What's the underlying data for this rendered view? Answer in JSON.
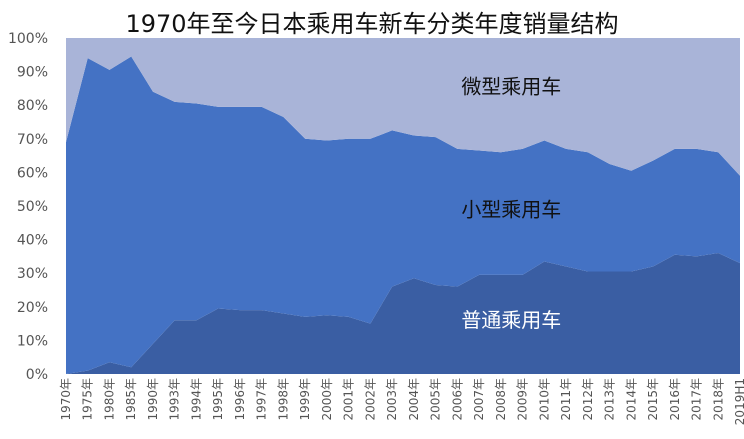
{
  "chart_data": {
    "type": "area",
    "stacked": true,
    "title": "1970年至今日本乘用车新车分类年度销量结构",
    "xlabel": "",
    "ylabel": "",
    "ylim": [
      0,
      100
    ],
    "ytick_labels": [
      "0%",
      "10%",
      "20%",
      "30%",
      "40%",
      "50%",
      "60%",
      "70%",
      "80%",
      "90%",
      "100%"
    ],
    "x": [
      "1970年",
      "1975年",
      "1980年",
      "1985年",
      "1990年",
      "1993年",
      "1994年",
      "1995年",
      "1996年",
      "1997年",
      "1998年",
      "1999年",
      "2000年",
      "2001年",
      "2002年",
      "2003年",
      "2004年",
      "2005年",
      "2006年",
      "2007年",
      "2008年",
      "2009年",
      "2010年",
      "2011年",
      "2012年",
      "2013年",
      "2014年",
      "2015年",
      "2016年",
      "2017年",
      "2018年",
      "2019H1"
    ],
    "legend": "labels-inside",
    "series": [
      {
        "name": "普通乘用车",
        "color": "#3a5ea3",
        "values": [
          0,
          1,
          3.5,
          2,
          9,
          16,
          16,
          19.5,
          19,
          19,
          18,
          17,
          17.5,
          17,
          15,
          26,
          28.5,
          26.5,
          26,
          29.5,
          29.5,
          29.5,
          33.5,
          32,
          30.5,
          30.5,
          30.5,
          32,
          35.5,
          35,
          36,
          33
        ]
      },
      {
        "name": "小型乘用车",
        "color": "#4472c4",
        "values": [
          69,
          93,
          87,
          92.5,
          75,
          65,
          64.5,
          60,
          60.5,
          60.5,
          58.5,
          53,
          52,
          53,
          55,
          46.5,
          42.5,
          44,
          41,
          37,
          36.5,
          37.5,
          36,
          35,
          35.5,
          32,
          30,
          31.5,
          31.5,
          32,
          30,
          26
        ]
      },
      {
        "name": "微型乘用车",
        "color": "#a9b4d8",
        "values": [
          31,
          6,
          9.5,
          5.5,
          16,
          19,
          19.5,
          20.5,
          20.5,
          20.5,
          23.5,
          30,
          30.5,
          30,
          30,
          27.5,
          29,
          29.5,
          33,
          33.5,
          34,
          33,
          30.5,
          33,
          34,
          37.5,
          39.5,
          36.5,
          33,
          33,
          34,
          41
        ]
      }
    ]
  }
}
